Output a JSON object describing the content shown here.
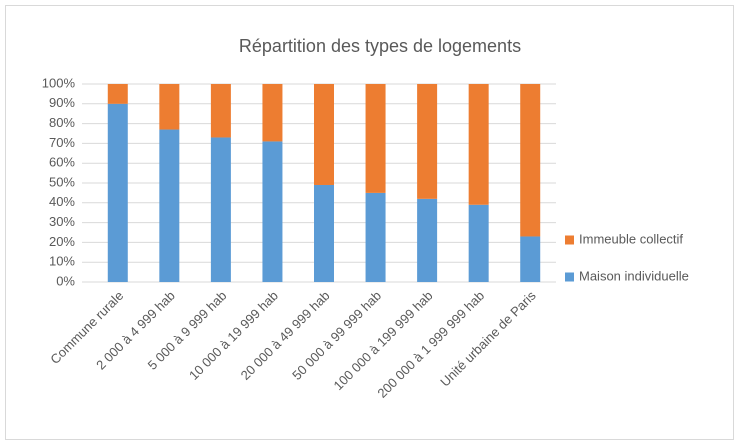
{
  "chart_data": {
    "type": "stacked_bar",
    "title": "Répartition des types de logements",
    "categories": [
      "Commune rurale",
      "2 000 à 4 999 hab",
      "5 000 à 9 999 hab",
      "10 000 à 19 999 hab",
      "20 000 à 49 999 hab",
      "50 000 à 99 999 hab",
      "100 000 à 199 999 hab",
      "200 000 à 1 999 999 hab",
      "Unité urbaine de Paris"
    ],
    "series": [
      {
        "name": "Maison individuelle",
        "color": "#5b9bd5",
        "values": [
          90,
          77,
          73,
          71,
          49,
          45,
          42,
          39,
          23
        ]
      },
      {
        "name": "Immeuble collectif",
        "color": "#ed7d31",
        "values": [
          10,
          23,
          27,
          29,
          51,
          55,
          58,
          61,
          77
        ]
      }
    ],
    "ylim": [
      0,
      100
    ],
    "yticks": [
      {
        "value": 0,
        "label": "0%"
      },
      {
        "value": 10,
        "label": "10%"
      },
      {
        "value": 20,
        "label": "20%"
      },
      {
        "value": 30,
        "label": "30%"
      },
      {
        "value": 40,
        "label": "40%"
      },
      {
        "value": 50,
        "label": "50%"
      },
      {
        "value": 60,
        "label": "60%"
      },
      {
        "value": 70,
        "label": "70%"
      },
      {
        "value": 80,
        "label": "80%"
      },
      {
        "value": 90,
        "label": "90%"
      },
      {
        "value": 100,
        "label": "100%"
      }
    ],
    "grid": true,
    "legend": "right"
  }
}
